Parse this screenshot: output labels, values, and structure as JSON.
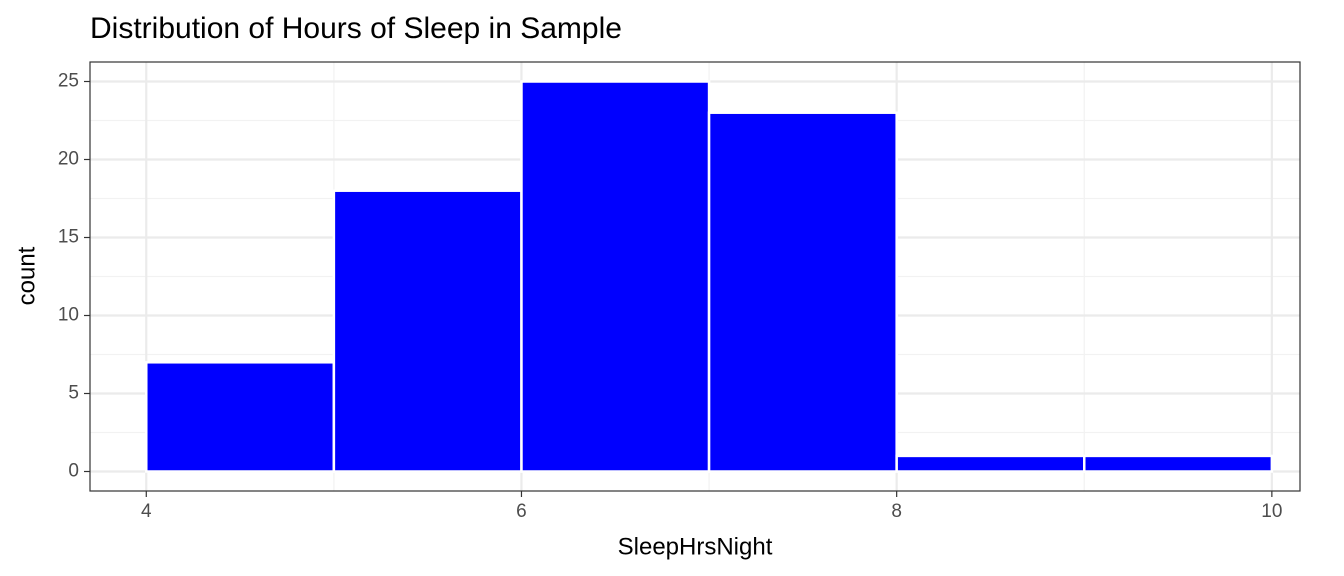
{
  "chart_data": {
    "type": "histogram",
    "title": "Distribution of Hours of Sleep in Sample",
    "x_label": "SleepHrsNight",
    "y_label": "count",
    "bins": [
      4,
      5,
      6,
      7,
      8,
      9,
      10
    ],
    "values": [
      7,
      18,
      25,
      23,
      1,
      1
    ],
    "color": "#0000ff",
    "xlim": [
      3.7,
      10.15
    ],
    "ylim": [
      -1.25,
      26.25
    ],
    "xticks": [
      4,
      6,
      8,
      10
    ],
    "yticks": [
      0,
      5,
      10,
      15,
      20,
      25
    ],
    "grid": true
  }
}
